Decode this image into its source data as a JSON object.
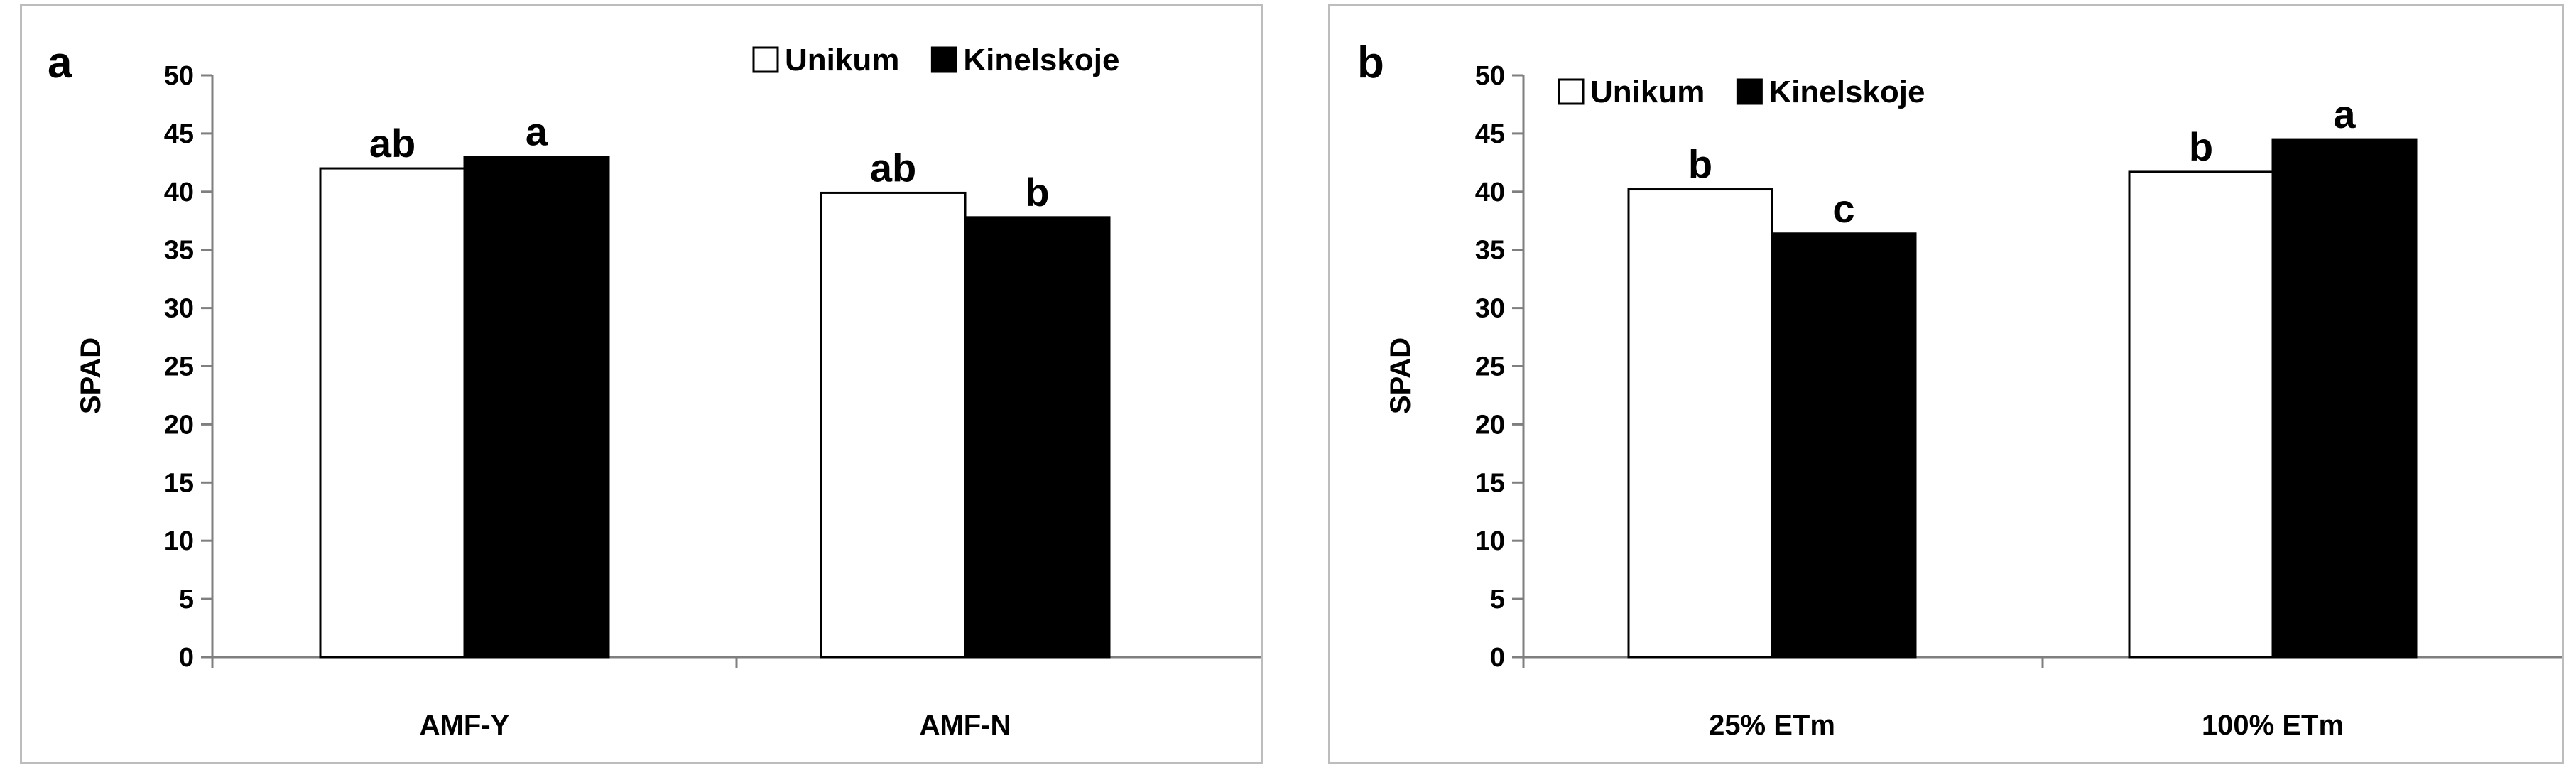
{
  "chart_data": [
    {
      "type": "bar",
      "panel_label": "a",
      "categories": [
        "AMF-Y",
        "AMF-N"
      ],
      "series": [
        {
          "name": "Unikum",
          "values": [
            42,
            39.9
          ],
          "letters": [
            "ab",
            "ab"
          ],
          "color": "#ffffff"
        },
        {
          "name": "Kinelskoje",
          "values": [
            43,
            37.8
          ],
          "letters": [
            "a",
            "b"
          ],
          "color": "#000000"
        }
      ],
      "ylabel": "SPAD",
      "ylim": [
        0,
        50
      ],
      "yticks": [
        "0",
        "5",
        "10",
        "15",
        "20",
        "25",
        "30",
        "35",
        "40",
        "45",
        "50"
      ],
      "grid": false,
      "legend": "top-right"
    },
    {
      "type": "bar",
      "panel_label": "b",
      "categories": [
        "25% ETm",
        "100% ETm"
      ],
      "series": [
        {
          "name": "Unikum",
          "values": [
            40.2,
            41.7
          ],
          "letters": [
            "b",
            "b"
          ],
          "color": "#ffffff"
        },
        {
          "name": "Kinelskoje",
          "values": [
            36.4,
            44.5
          ],
          "letters": [
            "c",
            "a"
          ],
          "color": "#000000"
        }
      ],
      "ylabel": "SPAD",
      "ylim": [
        0,
        50
      ],
      "yticks": [
        "0",
        "5",
        "10",
        "15",
        "20",
        "25",
        "30",
        "35",
        "40",
        "45",
        "50"
      ],
      "grid": false,
      "legend": "top-left"
    }
  ]
}
